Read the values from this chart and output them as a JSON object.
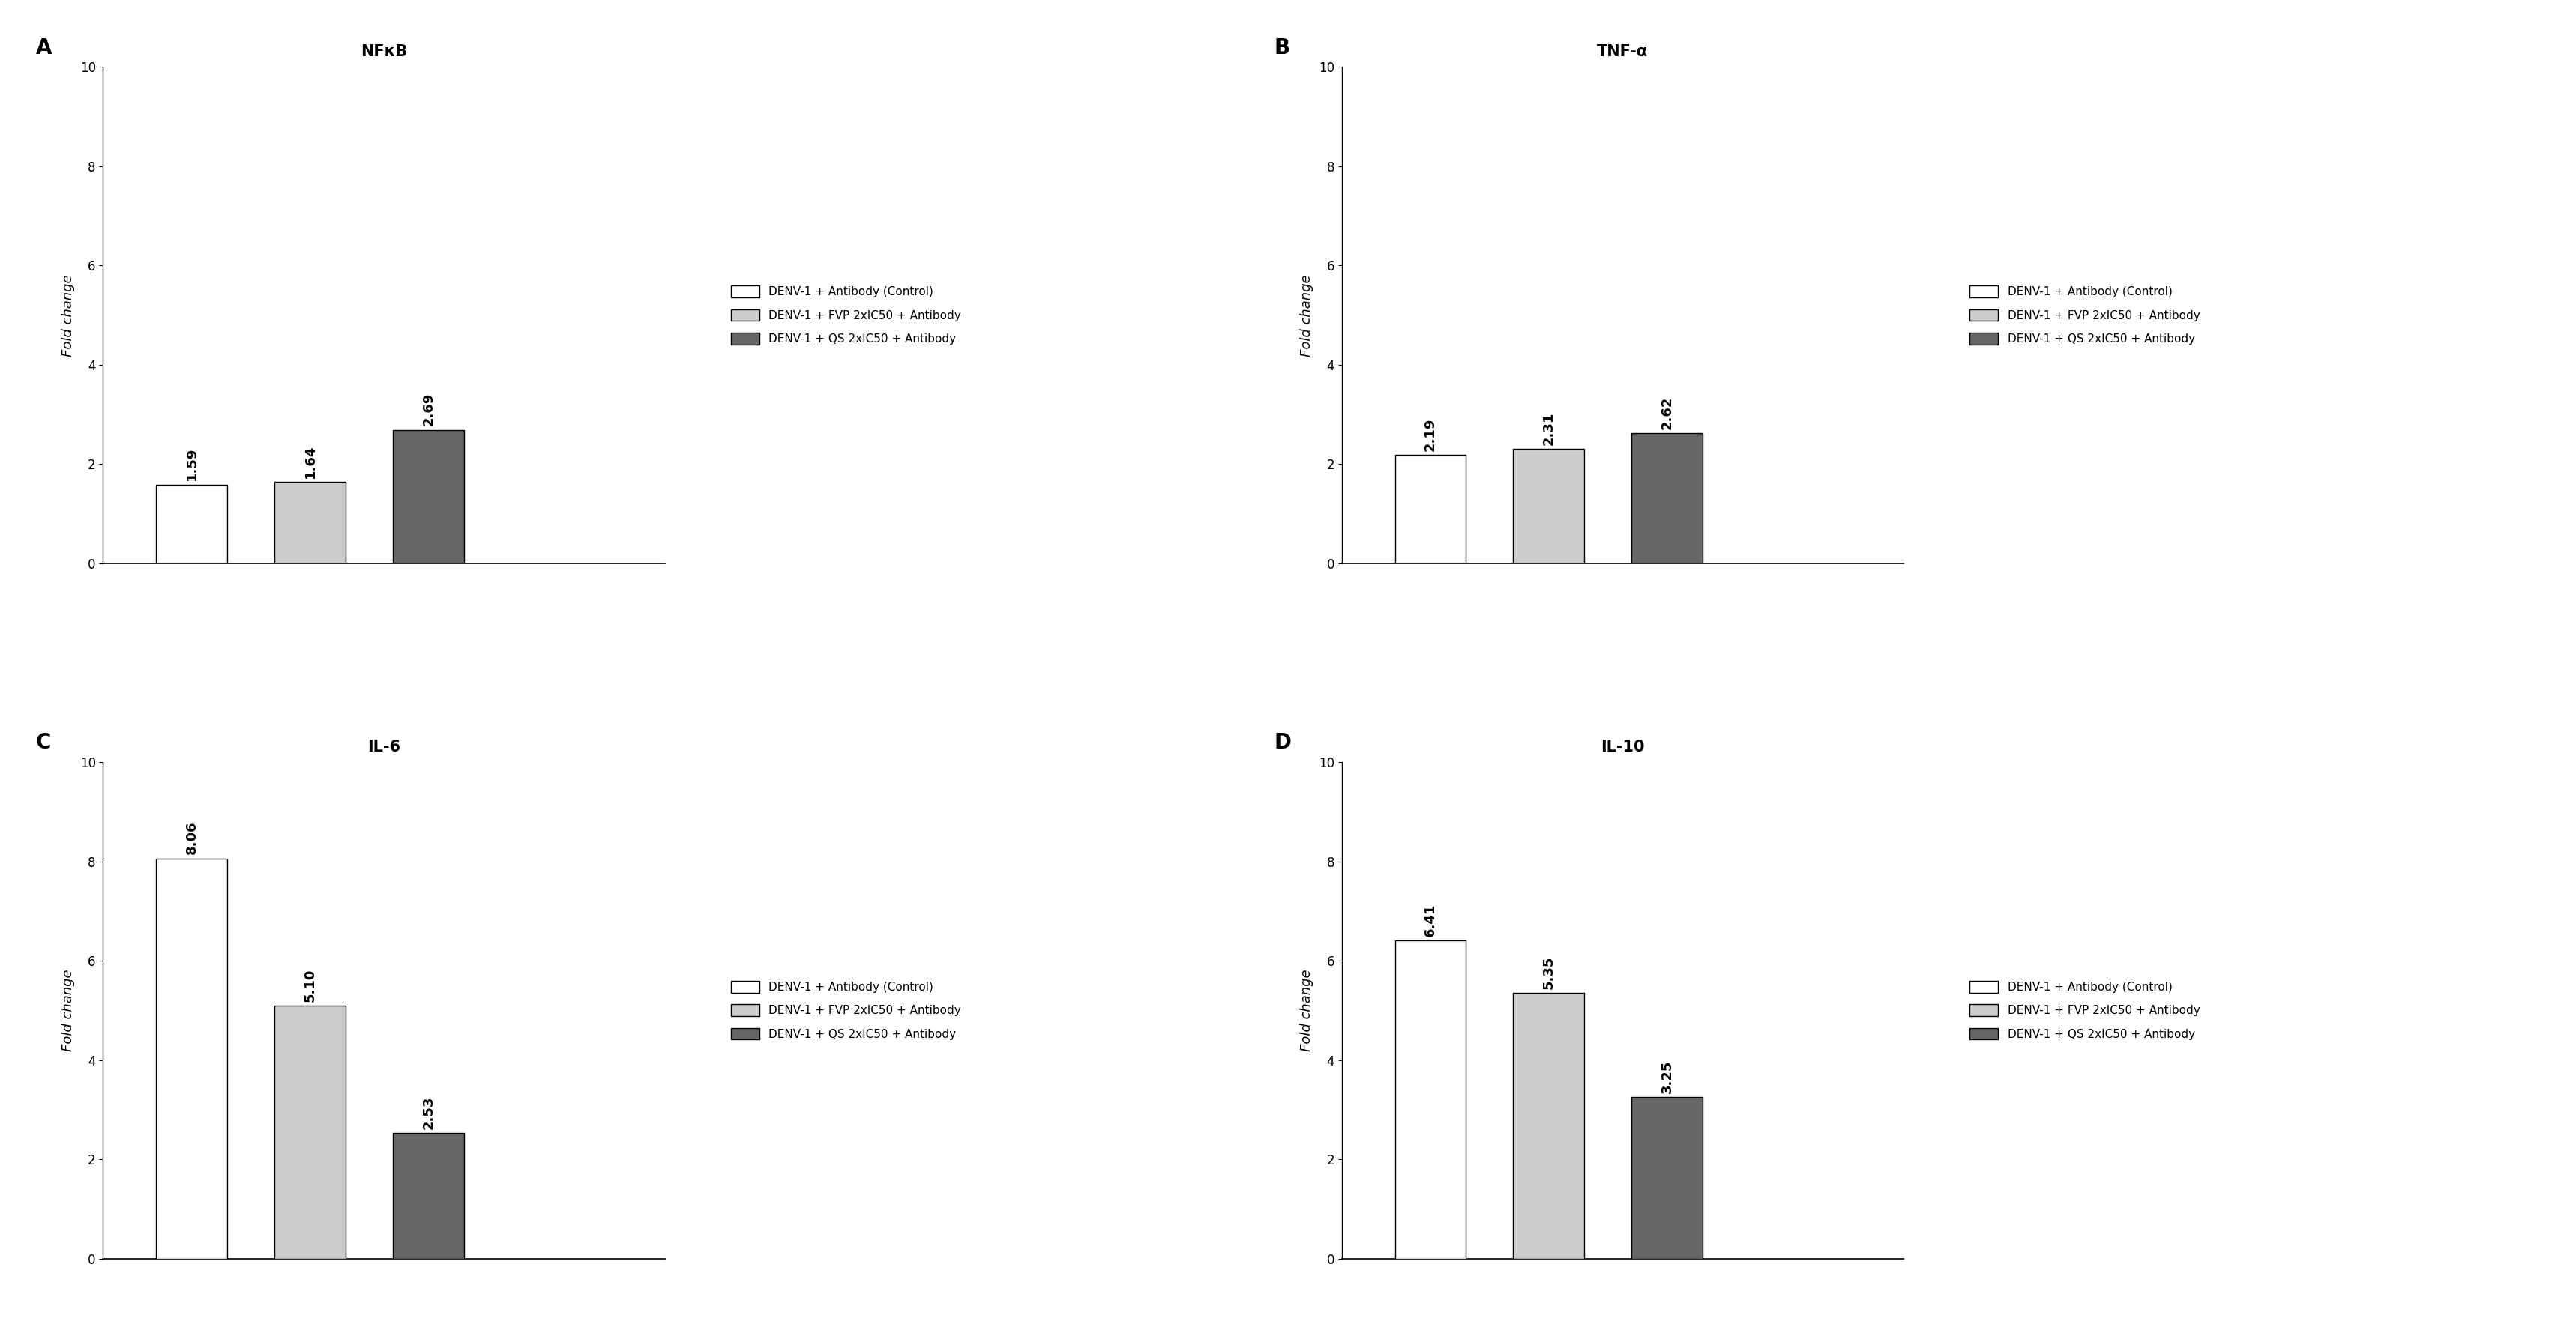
{
  "panels": [
    {
      "label": "A",
      "title": "NFκB",
      "values": [
        1.59,
        1.64,
        2.69
      ],
      "ylim": [
        0,
        10
      ],
      "yticks": [
        0,
        2,
        4,
        6,
        8,
        10
      ]
    },
    {
      "label": "B",
      "title": "TNF-α",
      "values": [
        2.19,
        2.31,
        2.62
      ],
      "ylim": [
        0,
        10
      ],
      "yticks": [
        0,
        2,
        4,
        6,
        8,
        10
      ]
    },
    {
      "label": "C",
      "title": "IL-6",
      "values": [
        8.06,
        5.1,
        2.53
      ],
      "ylim": [
        0,
        10
      ],
      "yticks": [
        0,
        2,
        4,
        6,
        8,
        10
      ]
    },
    {
      "label": "D",
      "title": "IL-10",
      "values": [
        6.41,
        5.35,
        3.25
      ],
      "ylim": [
        0,
        10
      ],
      "yticks": [
        0,
        2,
        4,
        6,
        8,
        10
      ]
    }
  ],
  "bar_colors": [
    "#ffffff",
    "#cccccc",
    "#666666"
  ],
  "bar_edgecolor": "#000000",
  "bar_width": 0.6,
  "bar_positions": [
    1,
    2,
    3
  ],
  "xlim": [
    0.25,
    5.0
  ],
  "ylabel": "Fold change",
  "legend_labels": [
    "DENV-1 + Antibody (Control)",
    "DENV-1 + FVP 2xIC50 + Antibody",
    "DENV-1 + QS 2xIC50 + Antibody"
  ],
  "background_color": "#ffffff",
  "value_fontsize": 13,
  "ylabel_fontsize": 13,
  "title_fontsize": 15,
  "panel_label_fontsize": 20,
  "tick_fontsize": 12,
  "legend_fontsize": 11
}
